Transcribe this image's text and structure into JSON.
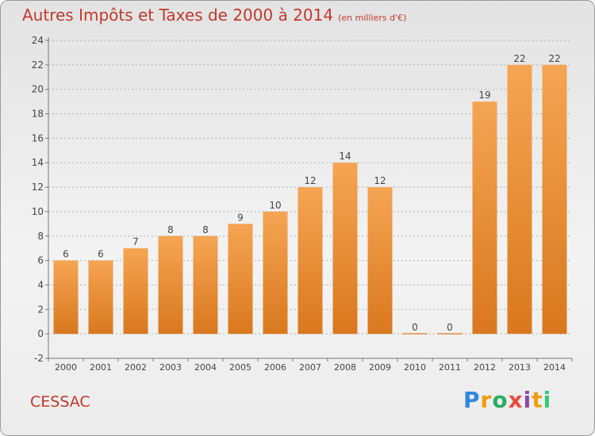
{
  "title": "Autres Impôts et Taxes de 2000 à 2014",
  "subtitle": "(en milliers d'€)",
  "location": "CESSAC",
  "brand": {
    "letters": [
      "P",
      "r",
      "o",
      "x",
      "i",
      "t",
      "i"
    ],
    "colors": [
      "#2e86de",
      "#f39c12",
      "#27ae60",
      "#e74c3c",
      "#8e44ad",
      "#f39c12",
      "#2ecc71"
    ]
  },
  "colors": {
    "bar_top": "#f5a553",
    "bar_bottom": "#d9781e",
    "grid": "#b0b0b0",
    "axis": "#777777",
    "text": "#444444"
  },
  "chart_data": {
    "type": "bar",
    "categories": [
      "2000",
      "2001",
      "2002",
      "2003",
      "2004",
      "2005",
      "2006",
      "2007",
      "2008",
      "2009",
      "2010",
      "2011",
      "2012",
      "2013",
      "2014"
    ],
    "values": [
      6,
      6,
      7,
      8,
      8,
      9,
      10,
      12,
      14,
      12,
      0,
      0,
      19,
      22,
      22
    ],
    "data_labels": [
      "6",
      "6",
      "7",
      "8",
      "8",
      "9",
      "10",
      "12",
      "14",
      "12",
      "0",
      "0",
      "19",
      "22",
      "22"
    ],
    "ylim": [
      -2,
      24
    ],
    "yticks": [
      -2,
      0,
      2,
      4,
      6,
      8,
      10,
      12,
      14,
      16,
      18,
      20,
      22,
      24
    ],
    "ytick_labels": [
      "-2",
      "0",
      "2",
      "4",
      "6",
      "8",
      "10",
      "12",
      "14",
      "16",
      "18",
      "20",
      "22",
      "24"
    ],
    "grid": true,
    "xlabel": "",
    "ylabel": ""
  }
}
